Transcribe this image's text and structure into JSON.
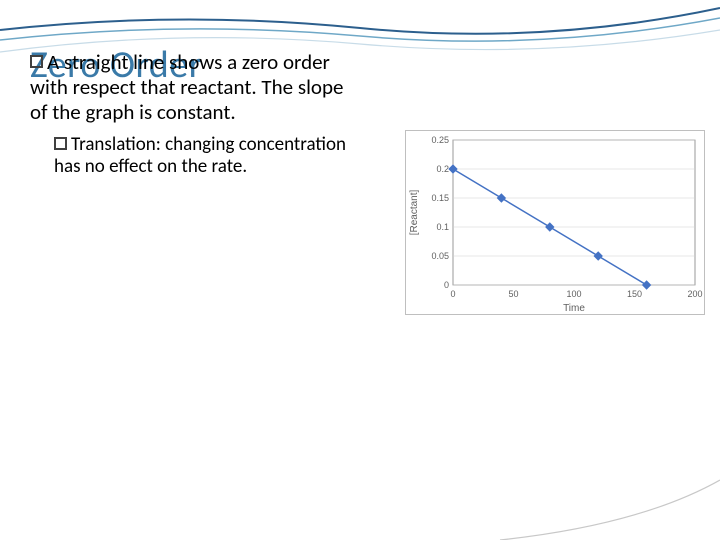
{
  "title_overlay": "Zero Order",
  "main_bullet": "A straight line shows a zero order with respect that reactant.  The slope of the graph is constant.",
  "sub_bullet": "Translation: changing concentration has no effect on the rate.",
  "chart": {
    "type": "line",
    "xlabel": "Time",
    "ylabel": "[Reactant]",
    "x_ticks": [
      0,
      50,
      100,
      150,
      200
    ],
    "y_ticks": [
      0,
      0.05,
      0.1,
      0.15,
      0.2,
      0.25
    ],
    "xlim": [
      0,
      200
    ],
    "ylim": [
      0,
      0.25
    ],
    "points_x": [
      0,
      40,
      80,
      120,
      160
    ],
    "points_y": [
      0.2,
      0.15,
      0.1,
      0.05,
      0.0
    ],
    "line_color": "#4472c4",
    "marker_color": "#4472c4",
    "marker_shape": "diamond",
    "marker_size": 4,
    "grid_color": "#d0d0d0",
    "axis_color": "#808080",
    "background_color": "#ffffff",
    "plot_background": "#ffffff",
    "line_width": 1.5
  },
  "decorative": {
    "curve_color_outer": "#2c5f8d",
    "curve_color_inner": "#6fa8c7",
    "curve_color_light": "#c8dce8",
    "corner_color": "#c8c8c8"
  }
}
